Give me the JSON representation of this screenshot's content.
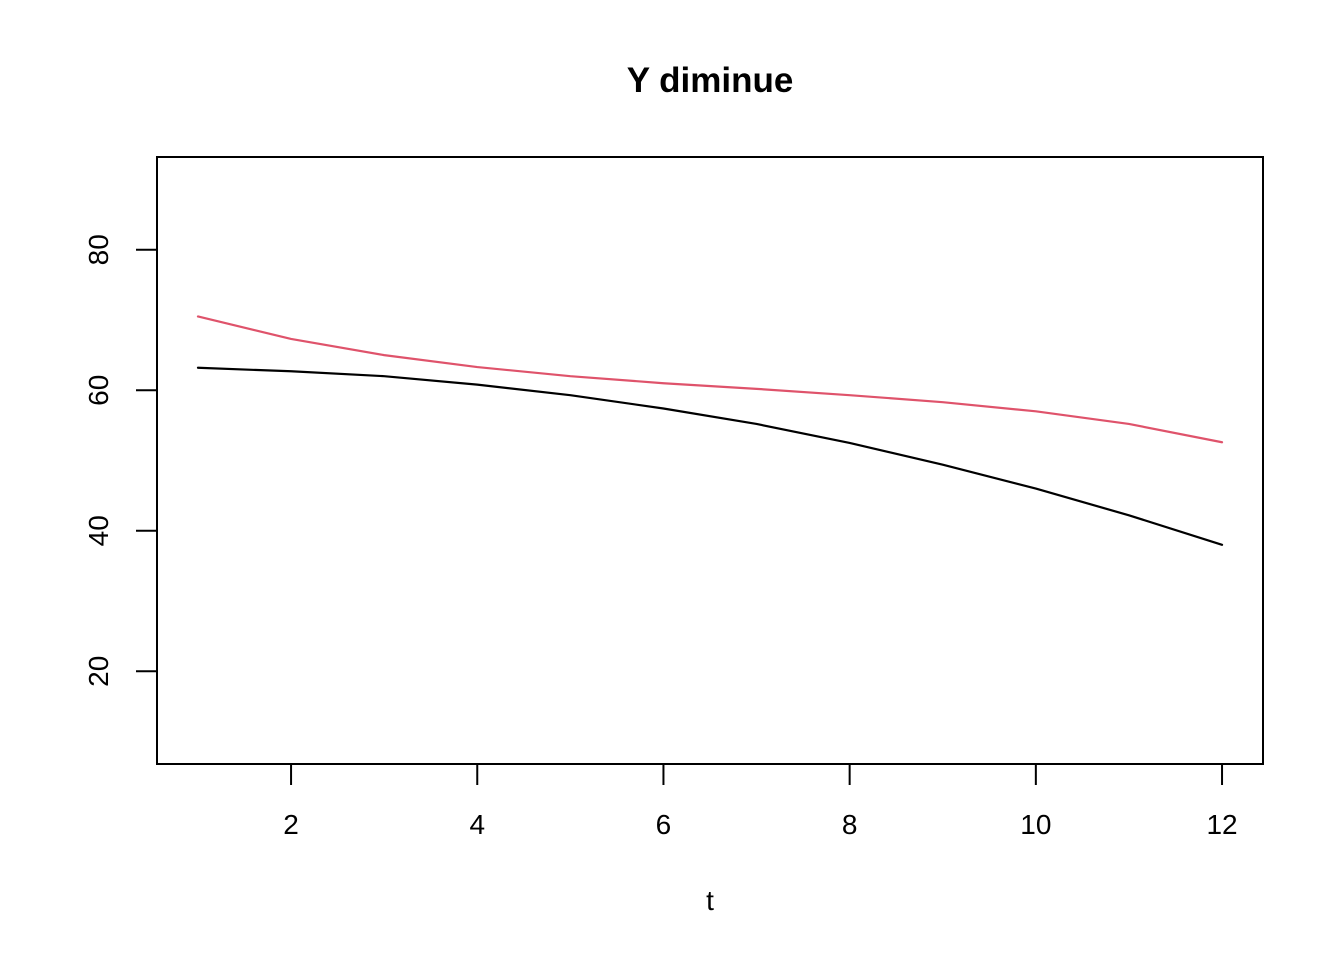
{
  "chart_data": {
    "type": "line",
    "title": "Y diminue",
    "xlabel": "t",
    "ylabel": "",
    "x": [
      1,
      2,
      3,
      4,
      5,
      6,
      7,
      8,
      9,
      10,
      11,
      12
    ],
    "xlim": [
      0.56,
      12.44
    ],
    "ylim": [
      6.8,
      93.2
    ],
    "xticks": [
      2,
      4,
      6,
      8,
      10,
      12
    ],
    "yticks": [
      20,
      40,
      60,
      80
    ],
    "grid": false,
    "legend": "none",
    "series": [
      {
        "color": "#000000",
        "values": [
          63.2,
          62.7,
          62.0,
          60.8,
          59.3,
          57.4,
          55.2,
          52.5,
          49.4,
          46.0,
          42.2,
          38.0
        ]
      },
      {
        "color": "#DF536B",
        "values": [
          70.5,
          67.3,
          65.0,
          63.3,
          62.0,
          61.0,
          60.2,
          59.3,
          58.3,
          57.0,
          55.2,
          52.6
        ]
      }
    ]
  }
}
